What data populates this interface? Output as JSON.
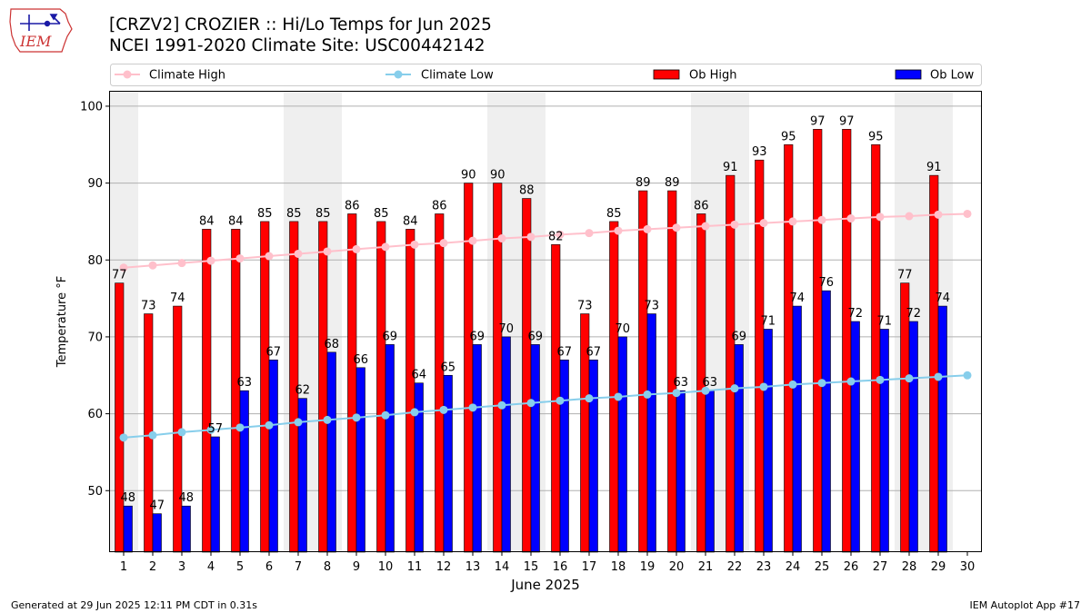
{
  "logo": {
    "text": "IEM"
  },
  "title": {
    "line1": "[CRZV2] CROZIER :: Hi/Lo Temps for Jun 2025",
    "line2": "NCEI 1991-2020 Climate Site: USC00442142"
  },
  "footer": {
    "left": "Generated at 29 Jun 2025 12:11 PM CDT in 0.31s",
    "right": "IEM Autoplot App #17"
  },
  "colors": {
    "ob_high": "#ff0000",
    "ob_low": "#0000ff",
    "climate_high": "#ffc0cb",
    "climate_low": "#87ceeb",
    "weekend_shade": "#efefef",
    "grid": "#b0b0b0"
  },
  "chart_data": {
    "type": "bar",
    "title": "[CRZV2] CROZIER :: Hi/Lo Temps for Jun 2025",
    "xlabel": "June 2025",
    "ylabel": "Temperature °F",
    "ylim": [
      42,
      102
    ],
    "yticks": [
      50,
      60,
      70,
      80,
      90,
      100
    ],
    "grid": true,
    "legend_position": "top",
    "categories": [
      "1",
      "2",
      "3",
      "4",
      "5",
      "6",
      "7",
      "8",
      "9",
      "10",
      "11",
      "12",
      "13",
      "14",
      "15",
      "16",
      "17",
      "18",
      "19",
      "20",
      "21",
      "22",
      "23",
      "24",
      "25",
      "26",
      "27",
      "28",
      "29",
      "30"
    ],
    "shaded_days": [
      1,
      7,
      8,
      14,
      15,
      21,
      22,
      28,
      29
    ],
    "series": [
      {
        "name": "Climate High",
        "kind": "line",
        "values": [
          79.0,
          79.3,
          79.6,
          79.9,
          80.2,
          80.5,
          80.8,
          81.1,
          81.4,
          81.7,
          82.0,
          82.2,
          82.5,
          82.8,
          83.0,
          83.3,
          83.5,
          83.8,
          84.0,
          84.2,
          84.4,
          84.6,
          84.8,
          85.0,
          85.2,
          85.4,
          85.6,
          85.7,
          85.9,
          86.0
        ]
      },
      {
        "name": "Climate Low",
        "kind": "line",
        "values": [
          56.9,
          57.2,
          57.6,
          57.9,
          58.2,
          58.5,
          58.9,
          59.2,
          59.5,
          59.8,
          60.2,
          60.5,
          60.8,
          61.1,
          61.4,
          61.7,
          62.0,
          62.2,
          62.5,
          62.7,
          63.0,
          63.3,
          63.5,
          63.8,
          64.0,
          64.2,
          64.4,
          64.6,
          64.8,
          65.0
        ]
      },
      {
        "name": "Ob High",
        "kind": "bar",
        "values": [
          77,
          73,
          74,
          84,
          84,
          85,
          85,
          85,
          86,
          85,
          84,
          86,
          90,
          90,
          88,
          82,
          73,
          85,
          89,
          89,
          86,
          91,
          93,
          95,
          97,
          97,
          95,
          77,
          91,
          null
        ]
      },
      {
        "name": "Ob Low",
        "kind": "bar",
        "values": [
          48,
          47,
          48,
          57,
          63,
          67,
          62,
          68,
          66,
          69,
          64,
          65,
          69,
          70,
          69,
          67,
          67,
          70,
          73,
          63,
          63,
          69,
          71,
          74,
          76,
          72,
          71,
          72,
          74,
          null
        ]
      }
    ]
  }
}
